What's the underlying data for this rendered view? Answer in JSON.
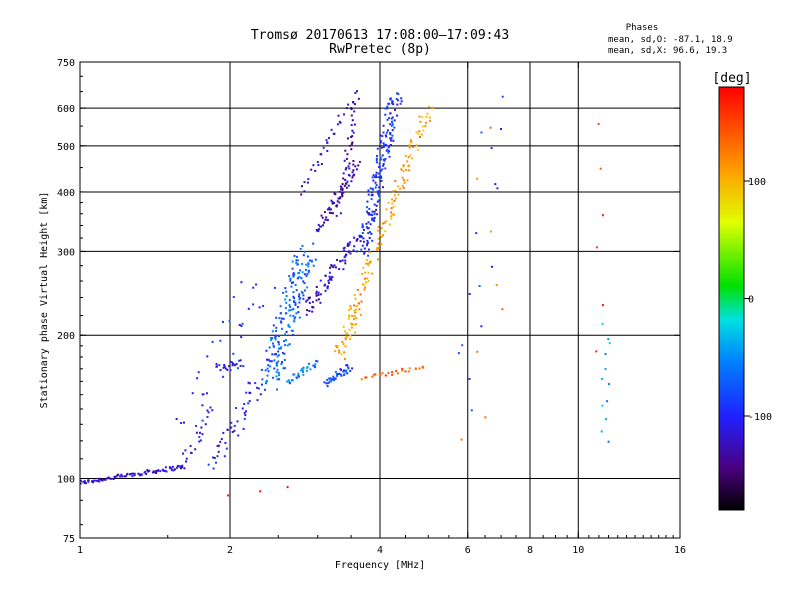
{
  "chart_data": {
    "type": "scatter",
    "title": "Tromsø 20170613 17:08:00–17:09:43",
    "subtitle": "RwPretec (8p)",
    "xlabel": "Frequency [MHz]",
    "ylabel": "Stationary phase Virtual Height [km]",
    "xscale": "log2",
    "yscale": "log",
    "xlim": [
      1,
      16
    ],
    "ylim": [
      75,
      750
    ],
    "x_ticks": [
      1,
      2,
      4,
      6,
      8,
      10,
      16
    ],
    "x_grid": [
      2,
      4,
      6,
      8,
      10
    ],
    "y_ticks": [
      75,
      100,
      200,
      300,
      400,
      500,
      600,
      750
    ],
    "y_grid": [
      100,
      200,
      300,
      400,
      500,
      600
    ],
    "phase_stats": {
      "heading": "Phases",
      "line_o": "mean, sd,O: -87.1, 18.9",
      "line_x": "mean, sd,X:  96.6, 19.3"
    },
    "colorbar": {
      "label": "[deg]",
      "range": [
        -180,
        180
      ],
      "ticks": [
        100,
        0,
        -100
      ]
    },
    "clusters": [
      {
        "name": "base-trace",
        "x": [
          1.0,
          1.62
        ],
        "y": [
          98,
          106
        ],
        "phase": -120,
        "n": 90,
        "spread": 0.01
      },
      {
        "name": "f1-rise",
        "x": [
          1.62,
          1.8
        ],
        "y": [
          106,
          140
        ],
        "phase": -110,
        "n": 20,
        "spread": 0.03
      },
      {
        "name": "f1-rise-2",
        "x": [
          1.85,
          2.3
        ],
        "y": [
          108,
          160
        ],
        "phase": -105,
        "n": 45,
        "spread": 0.04
      },
      {
        "name": "cusp-2mhz",
        "x": [
          1.88,
          2.1
        ],
        "y": [
          170,
          175
        ],
        "phase": -100,
        "n": 25,
        "spread": 0.02
      },
      {
        "name": "scatter-low-1",
        "x": [
          1.6,
          2.3
        ],
        "y": [
          120,
          270
        ],
        "phase": -100,
        "n": 35,
        "spread": 0.08
      },
      {
        "name": "cloud-2.6",
        "x": [
          2.4,
          2.85
        ],
        "y": [
          160,
          300
        ],
        "phase": -70,
        "n": 190,
        "spread": 0.05
      },
      {
        "name": "trace-o-1",
        "x": [
          2.85,
          3.6
        ],
        "y": [
          225,
          320
        ],
        "phase": -120,
        "n": 80,
        "spread": 0.025
      },
      {
        "name": "trace-o-2",
        "x": [
          3.0,
          3.6
        ],
        "y": [
          330,
          460
        ],
        "phase": -125,
        "n": 60,
        "spread": 0.02
      },
      {
        "name": "trace-o-3",
        "x": [
          3.3,
          3.6
        ],
        "y": [
          360,
          650
        ],
        "phase": -130,
        "n": 45,
        "spread": 0.015
      },
      {
        "name": "trace-o-4",
        "x": [
          2.8,
          3.4
        ],
        "y": [
          400,
          600
        ],
        "phase": -120,
        "n": 30,
        "spread": 0.02
      },
      {
        "name": "o-cusp-4",
        "x": [
          3.7,
          4.3
        ],
        "y": [
          300,
          640
        ],
        "phase": -95,
        "n": 180,
        "spread": 0.03
      },
      {
        "name": "x-trace",
        "x": [
          3.5,
          5.0
        ],
        "y": [
          220,
          600
        ],
        "phase": 110,
        "n": 120,
        "spread": 0.025
      },
      {
        "name": "x-low",
        "x": [
          3.3,
          3.6
        ],
        "y": [
          180,
          230
        ],
        "phase": 105,
        "n": 40,
        "spread": 0.03
      },
      {
        "name": "e-layer-blob-x",
        "x": [
          3.7,
          4.9
        ],
        "y": [
          162,
          172
        ],
        "phase": 140,
        "n": 25,
        "spread": 0.01
      },
      {
        "name": "e-layer-blob-o",
        "x": [
          3.1,
          3.5
        ],
        "y": [
          158,
          172
        ],
        "phase": -80,
        "n": 40,
        "spread": 0.015
      },
      {
        "name": "e-layer-blob-o2",
        "x": [
          2.6,
          3.0
        ],
        "y": [
          160,
          175
        ],
        "phase": -60,
        "n": 30,
        "spread": 0.015
      },
      {
        "name": "sparse-6",
        "x": [
          6.0,
          7.2
        ],
        "y": [
          150,
          630
        ],
        "phase": -90,
        "n": 15,
        "spread": 0.1
      },
      {
        "name": "sparse-6x",
        "x": [
          6.2,
          7.0
        ],
        "y": [
          110,
          520
        ],
        "phase": 120,
        "n": 8,
        "spread": 0.1
      },
      {
        "name": "column-11",
        "x": [
          11.3,
          11.4
        ],
        "y": [
          120,
          210
        ],
        "phase": -40,
        "n": 12,
        "spread": 0.02
      },
      {
        "name": "column-11x",
        "x": [
          11.2,
          11.5
        ],
        "y": [
          190,
          560
        ],
        "phase": 150,
        "n": 6,
        "spread": 0.05
      },
      {
        "name": "stray-low",
        "x": [
          2.0,
          2.6
        ],
        "y": [
          92,
          96
        ],
        "phase": 150,
        "n": 3,
        "spread": 0.01
      }
    ]
  }
}
